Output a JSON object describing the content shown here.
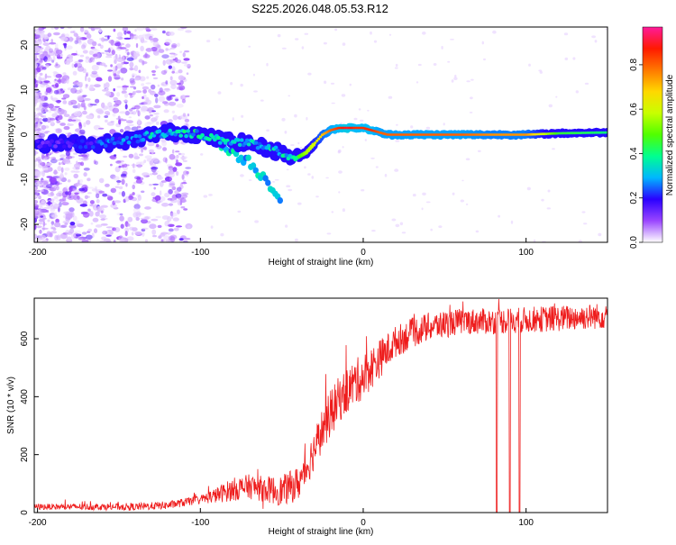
{
  "title": "S225.2026.048.05.53.R12",
  "chart_data": [
    {
      "type": "heatmap",
      "title": "S225.2026.048.05.53.R12",
      "xlabel": "Height of straight line (km)",
      "ylabel": "Frequency (Hz)",
      "xlim": [
        -202,
        150
      ],
      "ylim": [
        -24,
        24
      ],
      "x_ticks": [
        {
          "value": -200,
          "label": "-200"
        },
        {
          "value": -100,
          "label": "-100"
        },
        {
          "value": 0,
          "label": "0"
        },
        {
          "value": 100,
          "label": "100"
        }
      ],
      "y_ticks": [
        {
          "value": 20,
          "label": "20"
        },
        {
          "value": 10,
          "label": "10"
        },
        {
          "value": 0,
          "label": "0"
        },
        {
          "value": -10,
          "label": "-10"
        },
        {
          "value": -20,
          "label": "-20"
        }
      ],
      "colorbar": {
        "label": "Normalized spectral amplitude",
        "range": [
          0,
          0.97
        ],
        "ticks": [
          {
            "value": 0.0,
            "label": "0.0"
          },
          {
            "value": 0.2,
            "label": "0.2"
          },
          {
            "value": 0.4,
            "label": "0.4"
          },
          {
            "value": 0.6,
            "label": "0.6"
          },
          {
            "value": 0.8,
            "label": "0.8"
          }
        ],
        "colormap": [
          "#ffffff",
          "#9a46ff",
          "#2a00ff",
          "#00b6ff",
          "#00ff90",
          "#50ff00",
          "#c8ff00",
          "#ffd800",
          "#ff7800",
          "#ff1a00",
          "#ff1a9a"
        ]
      },
      "ridge": {
        "x": [
          -200,
          -180,
          -160,
          -140,
          -130,
          -120,
          -110,
          -100,
          -90,
          -80,
          -70,
          -60,
          -50,
          -45,
          -40,
          -35,
          -30,
          -25,
          -20,
          -15,
          -10,
          -5,
          0,
          5,
          10,
          15,
          20,
          40,
          60,
          80,
          100,
          120,
          150
        ],
        "freq": [
          -2,
          -2,
          -2,
          -1,
          0,
          0.5,
          0.5,
          0,
          -1,
          -1.5,
          -2,
          -3,
          -4,
          -5,
          -5,
          -4,
          -2,
          0,
          1,
          1.5,
          1.5,
          1.5,
          1.5,
          1,
          0.5,
          0,
          0,
          0,
          0,
          0,
          0,
          0.3,
          0.5
        ],
        "amplitude": [
          0.2,
          0.2,
          0.25,
          0.3,
          0.35,
          0.35,
          0.4,
          0.4,
          0.4,
          0.35,
          0.35,
          0.35,
          0.35,
          0.4,
          0.45,
          0.55,
          0.6,
          0.7,
          0.8,
          0.85,
          0.9,
          0.85,
          0.85,
          0.85,
          0.8,
          0.8,
          0.8,
          0.8,
          0.8,
          0.75,
          0.75,
          0.45,
          0.4
        ]
      },
      "secondary_branch": {
        "x": [
          -90,
          -80,
          -70,
          -60,
          -55,
          -50
        ],
        "freq": [
          -2,
          -4,
          -6,
          -10,
          -12,
          -15
        ]
      }
    },
    {
      "type": "line",
      "xlabel": "Height of straight line (km)",
      "ylabel": "SNR (10 * v/v)",
      "xlim": [
        -202,
        150
      ],
      "ylim": [
        0,
        740
      ],
      "x_ticks": [
        {
          "value": -200,
          "label": "-200"
        },
        {
          "value": -100,
          "label": "-100"
        },
        {
          "value": 0,
          "label": "0"
        },
        {
          "value": 100,
          "label": "100"
        }
      ],
      "y_ticks": [
        {
          "value": 0,
          "label": "0"
        },
        {
          "value": 200,
          "label": "200"
        },
        {
          "value": 400,
          "label": "400"
        },
        {
          "value": 600,
          "label": "600"
        }
      ],
      "color": "#ee1c1c",
      "series": [
        {
          "name": "SNR",
          "trend_x": [
            -202,
            -160,
            -140,
            -120,
            -110,
            -100,
            -90,
            -80,
            -70,
            -60,
            -50,
            -40,
            -35,
            -30,
            -25,
            -20,
            -15,
            -10,
            -5,
            0,
            5,
            10,
            15,
            20,
            30,
            40,
            50,
            60,
            80,
            100,
            120,
            150
          ],
          "trend_y": [
            20,
            20,
            20,
            25,
            35,
            45,
            60,
            80,
            90,
            80,
            75,
            100,
            150,
            220,
            290,
            340,
            390,
            420,
            450,
            470,
            500,
            530,
            560,
            590,
            620,
            640,
            650,
            660,
            660,
            665,
            670,
            680
          ],
          "noise_x": [
            -202,
            -100,
            -80,
            -60,
            -40,
            -20,
            0,
            20,
            60,
            150
          ],
          "noise_amp": [
            10,
            15,
            40,
            45,
            60,
            80,
            80,
            55,
            45,
            45
          ],
          "dropouts": [
            82,
            90,
            96
          ]
        }
      ]
    }
  ]
}
